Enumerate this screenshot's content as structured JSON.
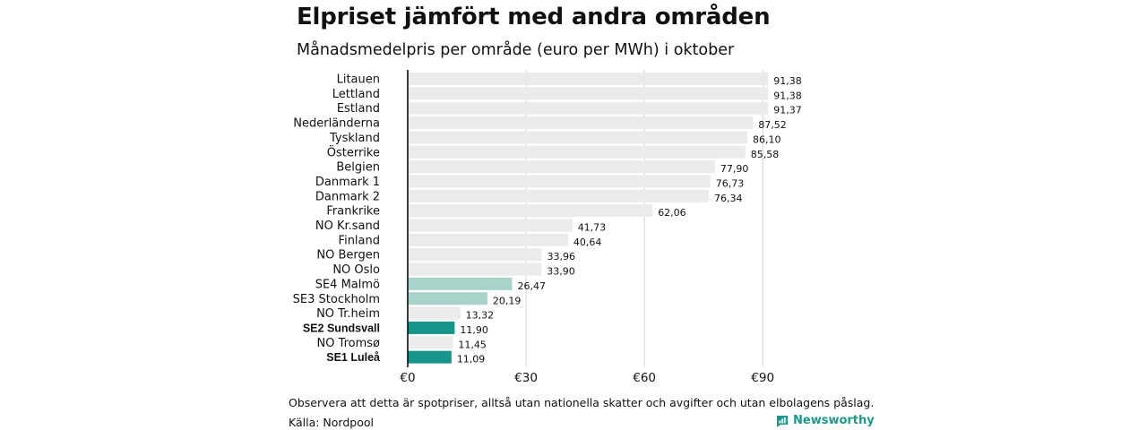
{
  "header": {
    "title": "Elpriset jämfört med andra områden",
    "subtitle": "Månadsmedelpris per område (euro per MWh) i oktober"
  },
  "footer": {
    "note": "Observera att detta är spotpriser, alltså utan nationella skatter och avgifter och utan elbolagens påslag.",
    "source": "Källa: Nordpool",
    "brand": "Newsworthy"
  },
  "colors": {
    "bar_default": "#ebebeb",
    "bar_light_teal": "#a8d3cb",
    "bar_dark_teal": "#17958a",
    "grid": "#d4d4d4",
    "axis": "#000000",
    "brand": "#1a9a8a"
  },
  "chart_data": {
    "type": "bar",
    "orientation": "horizontal",
    "title": "Elpriset jämfört med andra områden",
    "subtitle": "Månadsmedelpris per område (euro per MWh) i oktober",
    "categories": [
      "Litauen",
      "Lettland",
      "Estland",
      "Nederländerna",
      "Tyskland",
      "Österrike",
      "Belgien",
      "Danmark  1",
      "Danmark  2",
      "Frankrike",
      "NO Kr.sand",
      "Finland",
      "NO Bergen",
      "NO Oslo",
      "SE4  Malmö",
      "SE3  Stockholm",
      "NO Tr.heim",
      "SE2 Sundsvall",
      "NO Tromsø",
      "SE1 Luleå"
    ],
    "values": [
      91.38,
      91.38,
      91.37,
      87.52,
      86.1,
      85.58,
      77.9,
      76.73,
      76.34,
      62.06,
      41.73,
      40.64,
      33.96,
      33.9,
      26.47,
      20.19,
      13.32,
      11.9,
      11.45,
      11.09
    ],
    "value_labels": [
      "91,38",
      "91,38",
      "91,37",
      "87,52",
      "86,10",
      "85,58",
      "77,90",
      "76,73",
      "76,34",
      "62,06",
      "41,73",
      "40,64",
      "33,96",
      "33,90",
      "26,47",
      "20,19",
      "13,32",
      "11,90",
      "11,45",
      "11,09"
    ],
    "highlight": [
      "none",
      "none",
      "none",
      "none",
      "none",
      "none",
      "none",
      "none",
      "none",
      "none",
      "none",
      "none",
      "none",
      "none",
      "light",
      "light",
      "none",
      "dark",
      "none",
      "dark"
    ],
    "bold_labels": [
      false,
      false,
      false,
      false,
      false,
      false,
      false,
      false,
      false,
      false,
      false,
      false,
      false,
      false,
      false,
      false,
      false,
      true,
      false,
      true
    ],
    "xlim": [
      0,
      92
    ],
    "xticks": [
      0,
      30,
      60,
      90
    ],
    "xtick_labels": [
      "€0",
      "€30",
      "€60",
      "€90"
    ],
    "grid": true
  }
}
